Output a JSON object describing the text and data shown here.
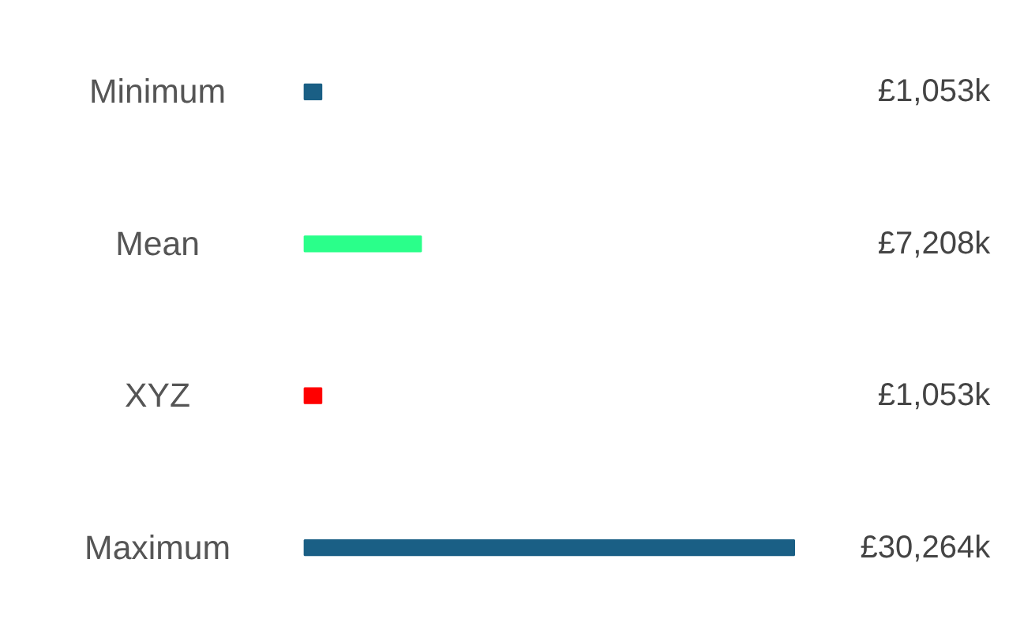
{
  "chart_data": {
    "type": "bar",
    "orientation": "horizontal",
    "categories": [
      "Minimum",
      "Mean",
      "XYZ",
      "Maximum"
    ],
    "values": [
      1053,
      7208,
      1053,
      30264
    ],
    "colors": [
      "#1a5f85",
      "#2aff8a",
      "#ff0000",
      "#1a5f85"
    ],
    "value_labels": [
      "£1,053k",
      "£7,208k",
      "£1,053k",
      "£30,264k"
    ]
  }
}
